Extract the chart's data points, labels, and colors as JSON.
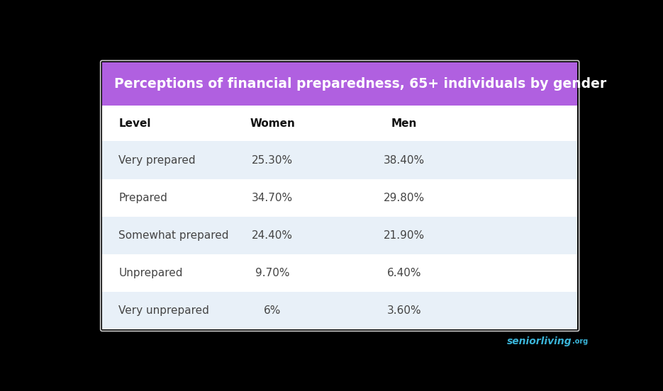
{
  "title": "Perceptions of financial preparedness, 65+ individuals by gender",
  "title_bg_color": "#b060e0",
  "title_text_color": "#ffffff",
  "table_bg_color": "#ffffff",
  "outer_bg_color": "#000000",
  "columns": [
    "Level",
    "Women",
    "Men"
  ],
  "rows": [
    [
      "Very prepared",
      "25.30%",
      "38.40%"
    ],
    [
      "Prepared",
      "34.70%",
      "29.80%"
    ],
    [
      "Somewhat prepared",
      "24.40%",
      "21.90%"
    ],
    [
      "Unprepared",
      "9.70%",
      "6.40%"
    ],
    [
      "Very unprepared",
      "6%",
      "3.60%"
    ]
  ],
  "row_colors": [
    "#e8f0f8",
    "#ffffff",
    "#e8f0f8",
    "#ffffff",
    "#e8f0f8"
  ],
  "header_text_color": "#111111",
  "cell_text_color": "#444444",
  "watermark": "seniorliving",
  "watermark_org": ".org",
  "watermark_color": "#3ab4d8"
}
